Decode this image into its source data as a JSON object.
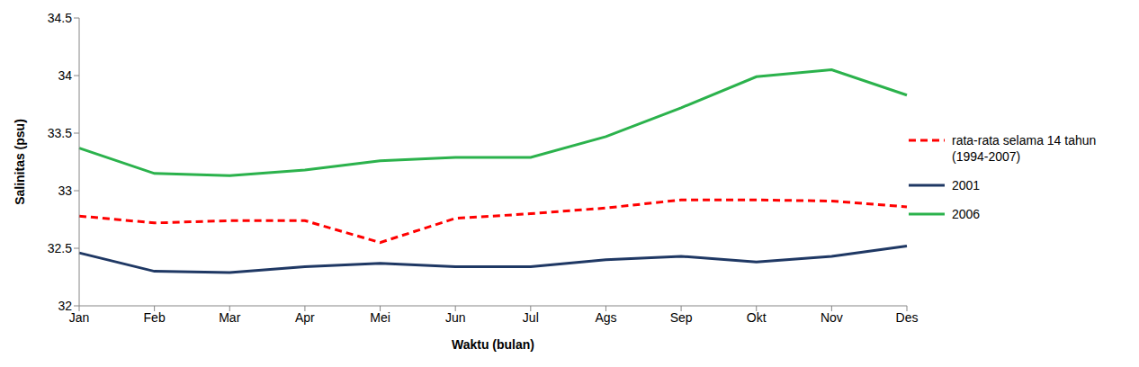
{
  "chart_data": {
    "type": "line",
    "x_label": "Waktu (bulan)",
    "y_label": "Salinitas (psu)",
    "categories": [
      "Jan",
      "Feb",
      "Mar",
      "Apr",
      "Mei",
      "Jun",
      "Jul",
      "Ags",
      "Sep",
      "Okt",
      "Nov",
      "Des"
    ],
    "series": [
      {
        "name": "rata-rata selama 14 tahun (1994-2007)",
        "color": "#ff0000",
        "line_style": "dashed",
        "marker": "none",
        "values": [
          32.78,
          32.72,
          32.74,
          32.74,
          32.55,
          32.76,
          32.8,
          32.85,
          32.92,
          32.92,
          32.91,
          32.86
        ]
      },
      {
        "name": "2001",
        "color": "#1f3864",
        "line_style": "solid",
        "marker": "none",
        "values": [
          32.46,
          32.3,
          32.29,
          32.34,
          32.37,
          32.34,
          32.34,
          32.4,
          32.43,
          32.38,
          32.43,
          32.52
        ]
      },
      {
        "name": "2006",
        "color": "#2bb24c",
        "line_style": "solid",
        "marker": "none",
        "values": [
          33.37,
          33.15,
          33.13,
          33.18,
          33.26,
          33.29,
          33.29,
          33.47,
          33.72,
          33.99,
          34.05,
          33.83
        ]
      }
    ],
    "ylim": [
      32,
      34.5
    ],
    "yticks": [
      32,
      32.5,
      33,
      33.5,
      34,
      34.5
    ],
    "grid": false,
    "legend": "right"
  }
}
